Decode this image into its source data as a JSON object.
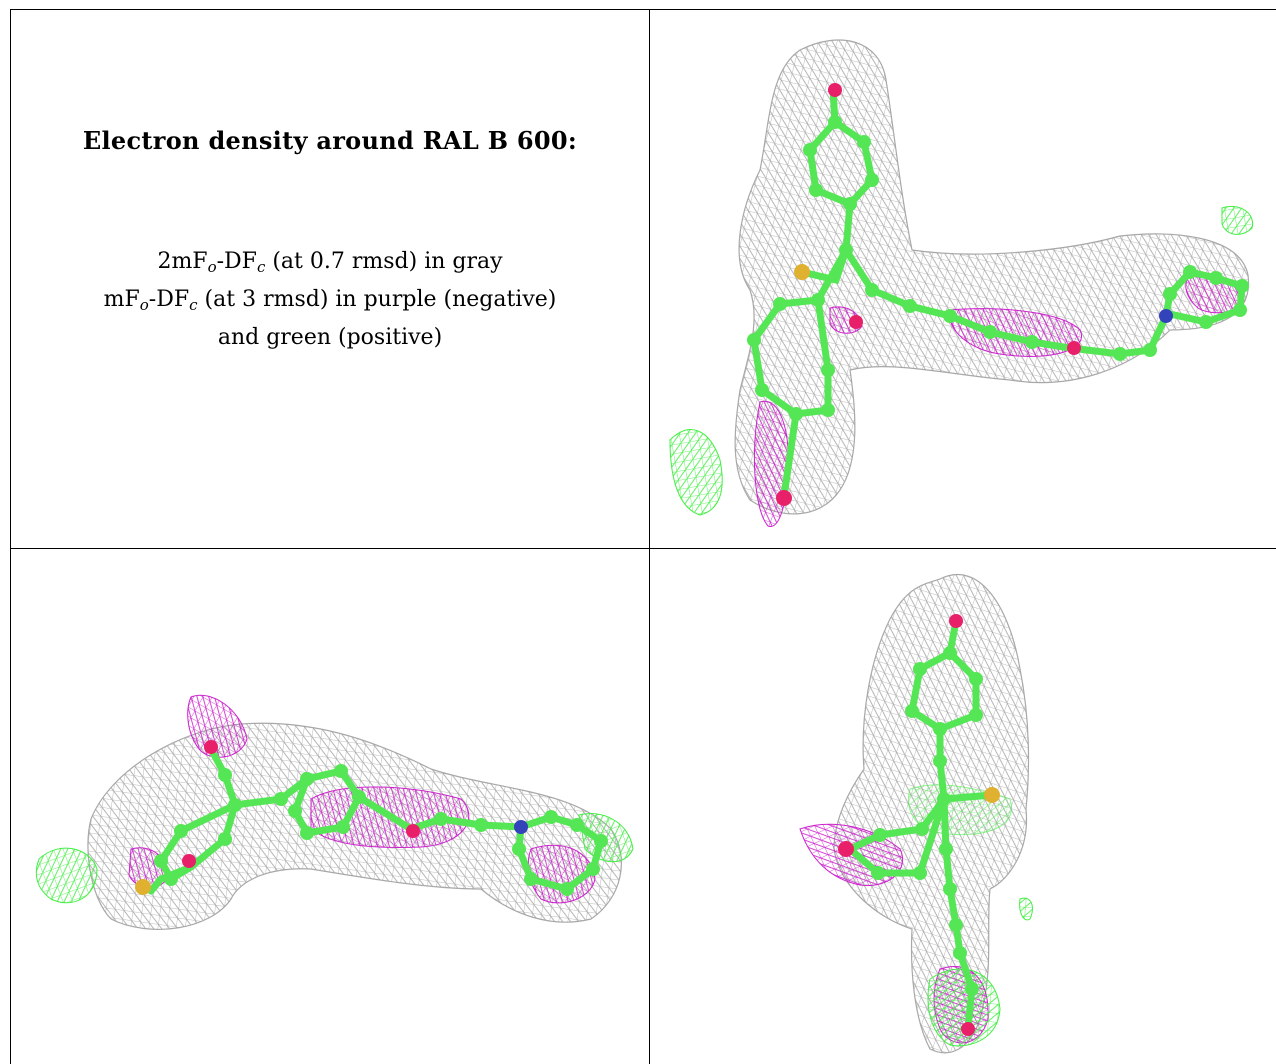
{
  "caption": {
    "title": "Electron density around RAL B 600:",
    "line1": {
      "prefix": "2mF",
      "sub1": "o",
      "mid": "-DF",
      "sub2": "c",
      "suffix": " (at 0.7 rmsd) in gray"
    },
    "line2": {
      "prefix": "mF",
      "sub1": "o",
      "mid": "-DF",
      "sub2": "c",
      "suffix": " (at 3 rmsd) in purple (negative)"
    },
    "line3": "and green (positive)"
  },
  "colors": {
    "mesh_2fofc": "#a8a8a8",
    "mesh_negative": "#cc22cc",
    "mesh_positive": "#44ee44",
    "carbon": "#55e655",
    "oxygen": "#e8206a",
    "sulfur": "#e0b030",
    "nitrogen": "#3344bb"
  },
  "panels": [
    {
      "name": "view-top-right",
      "label": ""
    },
    {
      "name": "view-bottom-left",
      "label": ""
    },
    {
      "name": "view-bottom-right",
      "label": ""
    }
  ]
}
